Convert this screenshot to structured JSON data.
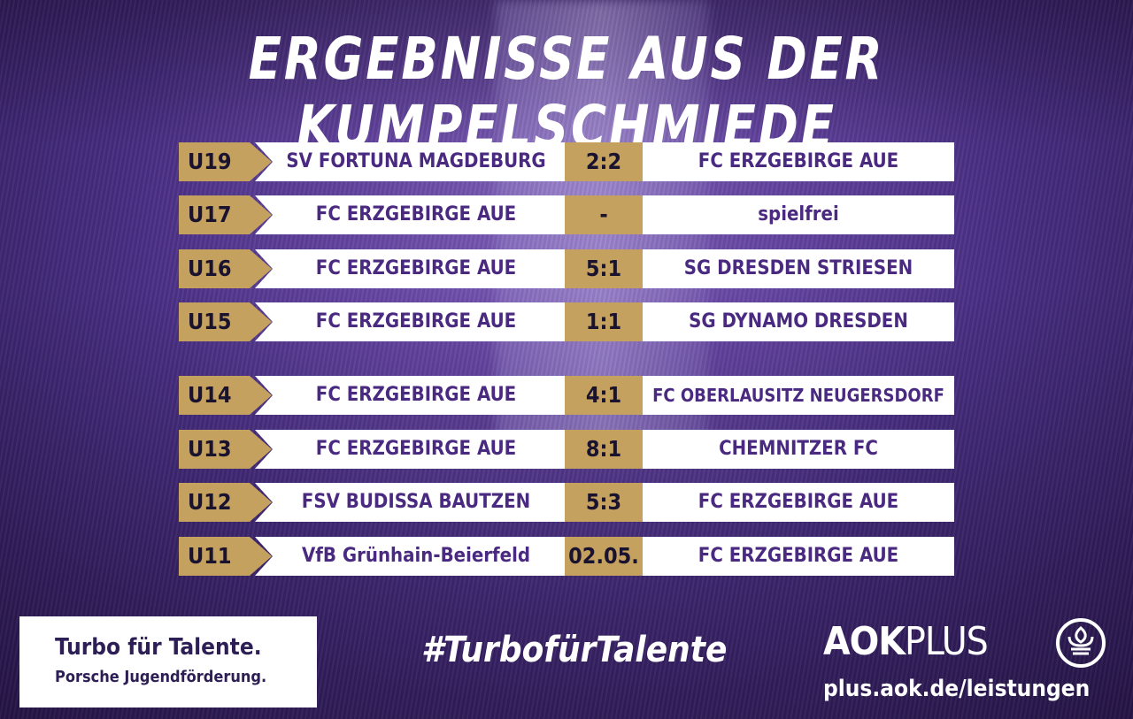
{
  "title": "ERGEBNISSE AUS DER KUMPELSCHMIEDE",
  "results": [
    {
      "age": "U19",
      "home": "SV FORTUNA MAGDEBURG",
      "score": "2:2",
      "away": "FC ERZGEBIRGE AUE"
    },
    {
      "age": "U17",
      "home": "FC ERZGEBIRGE AUE",
      "score": "-",
      "away": "spielfrei"
    },
    {
      "age": "U16",
      "home": "FC ERZGEBIRGE AUE",
      "score": "5:1",
      "away": "SG DRESDEN STRIESEN"
    },
    {
      "age": "U15",
      "home": "FC ERZGEBIRGE AUE",
      "score": "1:1",
      "away": "SG DYNAMO DRESDEN"
    },
    {
      "age": "U14",
      "home": "FC ERZGEBIRGE AUE",
      "score": "4:1",
      "away": "FC OBERLAUSITZ NEUGERSDORF"
    },
    {
      "age": "U13",
      "home": "FC ERZGEBIRGE AUE",
      "score": "8:1",
      "away": "CHEMNITZER FC"
    },
    {
      "age": "U12",
      "home": "FSV BUDISSA BAUTZEN",
      "score": "5:3",
      "away": "FC ERZGEBIRGE AUE"
    },
    {
      "age": "U11",
      "home": "VfB Grünhain-Beierfeld",
      "score": "02.05.",
      "away": "FC ERZGEBIRGE AUE"
    }
  ],
  "sponsor": {
    "line1": "Turbo für Talente.",
    "line2": "Porsche Jugendförderung."
  },
  "hashtag": "#TurbofürTalente",
  "aok": {
    "brand_bold": "AOK",
    "brand_light": "PLUS",
    "url": "plus.aok.de/leistungen"
  },
  "colors": {
    "gold": "#c4a15f",
    "purple_text": "#4a2a80",
    "background": "#4a2f85"
  }
}
